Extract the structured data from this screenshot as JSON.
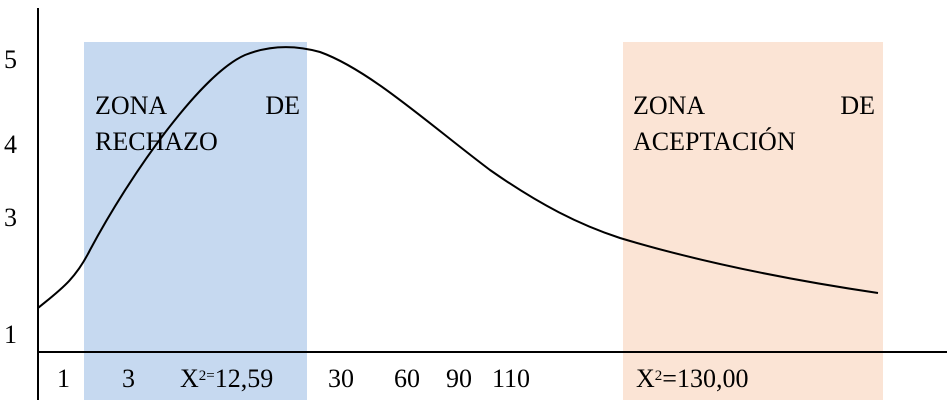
{
  "zones": {
    "reject": {
      "line1_left": "ZONA",
      "line1_right": "DE",
      "line2": "RECHAZO",
      "color": "#c6d9f0"
    },
    "accept": {
      "line1_left": "ZONA",
      "line1_right": "DE",
      "line2": "ACEPTACIÓN",
      "color": "#fbe4d5"
    }
  },
  "y_ticks": [
    "5",
    "4",
    "3",
    "1"
  ],
  "x_ticks": {
    "t1": "1",
    "t2": "3",
    "critical_prefix": "X",
    "critical_sup": "2=",
    "critical_value": "12,59",
    "t4": "30",
    "t5": "60",
    "t6": "90",
    "t7": "110",
    "calc_prefix": "X",
    "calc_sup": "2",
    "calc_value": "=130,00"
  }
}
